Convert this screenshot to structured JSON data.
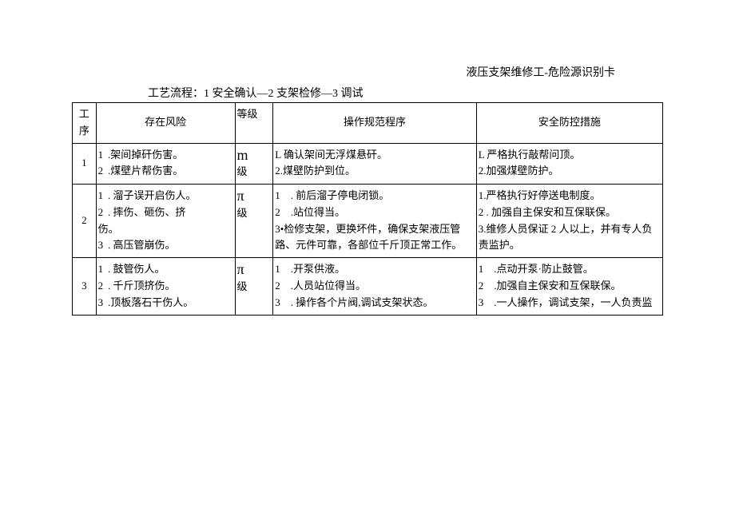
{
  "header": {
    "title_right": "液压支架维修工-危险源识别卡",
    "process_label": "工艺流程：1 安全确认—2 支架检修—3 调试"
  },
  "table": {
    "headers": {
      "seq": "工序",
      "risk": "存在风险",
      "level": "等级",
      "proc": "操作规范程序",
      "safe": "安全防控措施"
    },
    "rows": [
      {
        "seq": "1",
        "nums": "1\n2",
        "risk": ".架间掉矸伤害。\n.煤壁片帮伤害。",
        "level_char": "m",
        "level_suffix": "级",
        "proc": "L 确认架间无浮煤悬矸。\n2.煤壁防护到位。",
        "safe": "L 严格执行敲帮问顶。\n2.加强煤壁防护。"
      },
      {
        "seq": "2",
        "nums": "1\n2\n\n3",
        "risk": ". 溜子误开启伤人。\n. 摔伤、砸伤、挤伤。\n. 高压管崩伤。",
        "risk_alt": "",
        "level_char": "π",
        "level_suffix": "级",
        "proc": "1　. 前后溜子停电闭锁。\n2　.站位得当。\n3•检修支架，更换坏件，确保支架液压管路、元件可靠，各部位千斤顶正常工作。",
        "safe": "1.严格执行好停送电制度。\n2 . 加强自主保安和互保联保。\n3.维修人员保证 2 人以上，并有专人负责监护。"
      },
      {
        "seq": "3",
        "nums": "1\n2\n3",
        "risk": ". 鼓管伤人。\n. 千斤顶挤伤。\n.顶板落石干伤人。",
        "level_char": "π",
        "level_suffix": "级",
        "proc": "1　.开泵供液。\n2　.人员站位得当。\n3　. 操作各个片阀,调试支架状态。",
        "safe": "1　.点动开泵·防止鼓管。\n2　.加强自主保安和互保联保。\n3　.一人操作，调试支架，一人负责监"
      }
    ]
  },
  "colors": {
    "text": "#000000",
    "border": "#000000",
    "background": "#ffffff"
  }
}
